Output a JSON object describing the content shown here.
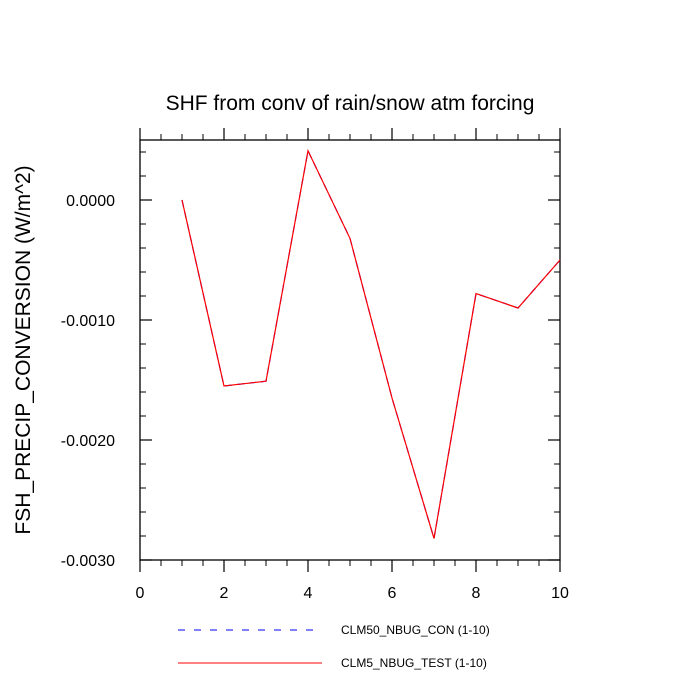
{
  "chart_data": {
    "type": "line",
    "title": "SHF from conv of rain/snow atm forcing",
    "xlabel": "",
    "ylabel": "FSH_PRECIP_CONVERSION  (W/m^2)",
    "xlim": [
      0,
      10
    ],
    "ylim": [
      -0.003,
      0.0005
    ],
    "x_ticks": [
      0,
      2,
      4,
      6,
      8,
      10
    ],
    "x_tick_labels": [
      "0",
      "2",
      "4",
      "6",
      "8",
      "10"
    ],
    "y_ticks": [
      0.0,
      -0.001,
      -0.002,
      -0.003
    ],
    "y_tick_labels": [
      "0.0000",
      "-0.0010",
      "-0.0020",
      "-0.0030"
    ],
    "grid": false,
    "legend_position": "bottom",
    "x": [
      1,
      2,
      3,
      4,
      5,
      6,
      7,
      8,
      9,
      10
    ],
    "series": [
      {
        "name": "CLM50_NBUG_CON (1-10)",
        "color": "#0000ff",
        "dash": "dashed",
        "values": [
          0.0,
          -0.00155,
          -0.00151,
          0.00041,
          -0.00032,
          -0.00165,
          -0.00282,
          -0.00078,
          -0.0009,
          -0.0005
        ]
      },
      {
        "name": "CLM5_NBUG_TEST (1-10)",
        "color": "#ff0000",
        "dash": "solid",
        "values": [
          0.0,
          -0.00155,
          -0.00151,
          0.00041,
          -0.00032,
          -0.00165,
          -0.00282,
          -0.00078,
          -0.0009,
          -0.0005
        ]
      }
    ]
  }
}
